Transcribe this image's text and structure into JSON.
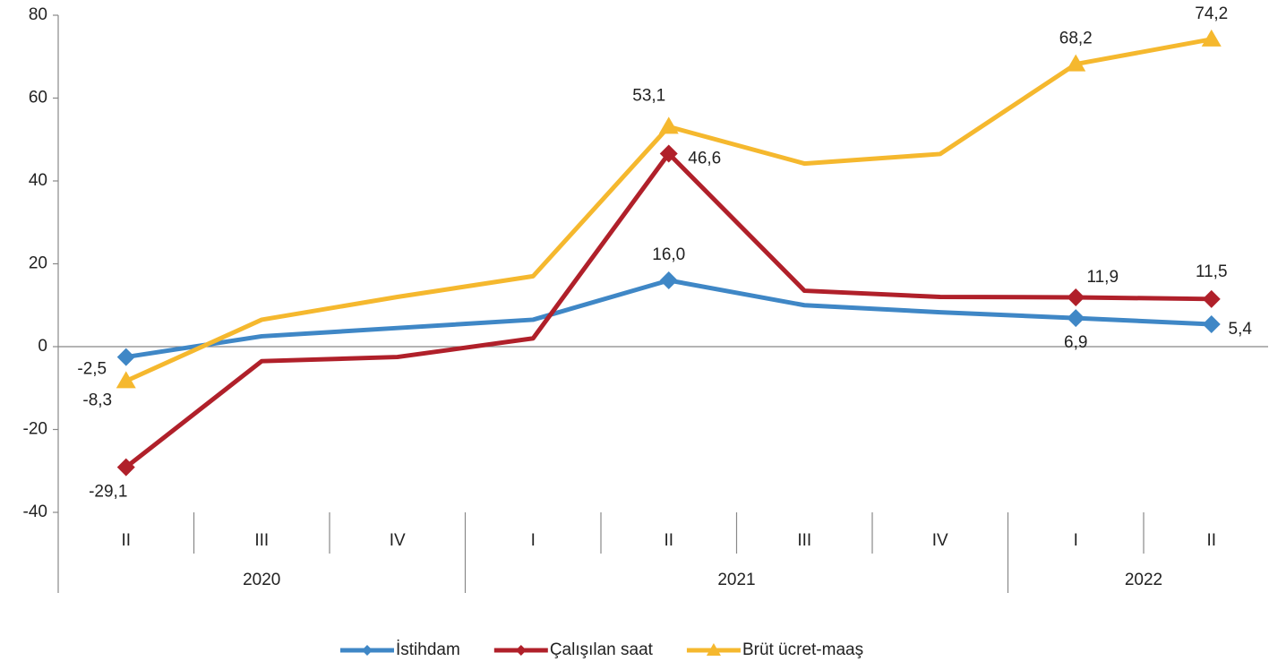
{
  "chart_data": {
    "type": "line",
    "categories": [
      "II",
      "III",
      "IV",
      "I",
      "II",
      "III",
      "IV",
      "I",
      "II"
    ],
    "years": [
      "2020",
      "2020",
      "2020",
      "2021",
      "2021",
      "2021",
      "2021",
      "2022",
      "2022"
    ],
    "ylim": [
      -40,
      80
    ],
    "yticks": [
      -40,
      -20,
      0,
      20,
      40,
      60,
      80
    ],
    "legend": "bottom",
    "series": [
      {
        "name": "İstihdam",
        "color": "#3f87c6",
        "marker": "diamond",
        "values": [
          -2.5,
          2.5,
          4.5,
          6.5,
          16.0,
          10.0,
          8.3,
          6.9,
          5.4
        ],
        "value_labels": [
          "-2,5",
          null,
          null,
          null,
          "16,0",
          null,
          null,
          "6,9",
          "5,4"
        ]
      },
      {
        "name": "Çalışılan saat",
        "color": "#b0202a",
        "marker": "diamond",
        "values": [
          -29.1,
          -3.5,
          -2.5,
          2.0,
          46.6,
          13.5,
          12.0,
          11.9,
          11.5
        ],
        "value_labels": [
          "-29,1",
          null,
          null,
          null,
          "46,6",
          null,
          null,
          "11,9",
          "11,5"
        ]
      },
      {
        "name": "Brüt ücret-maaş",
        "color": "#f5b82e",
        "marker": "triangle",
        "values": [
          -8.3,
          6.5,
          12.0,
          17.0,
          53.1,
          44.2,
          46.5,
          68.2,
          74.2
        ],
        "value_labels": [
          "-8,3",
          null,
          null,
          null,
          "53,1",
          null,
          null,
          "68,2",
          "74,2"
        ]
      }
    ]
  }
}
